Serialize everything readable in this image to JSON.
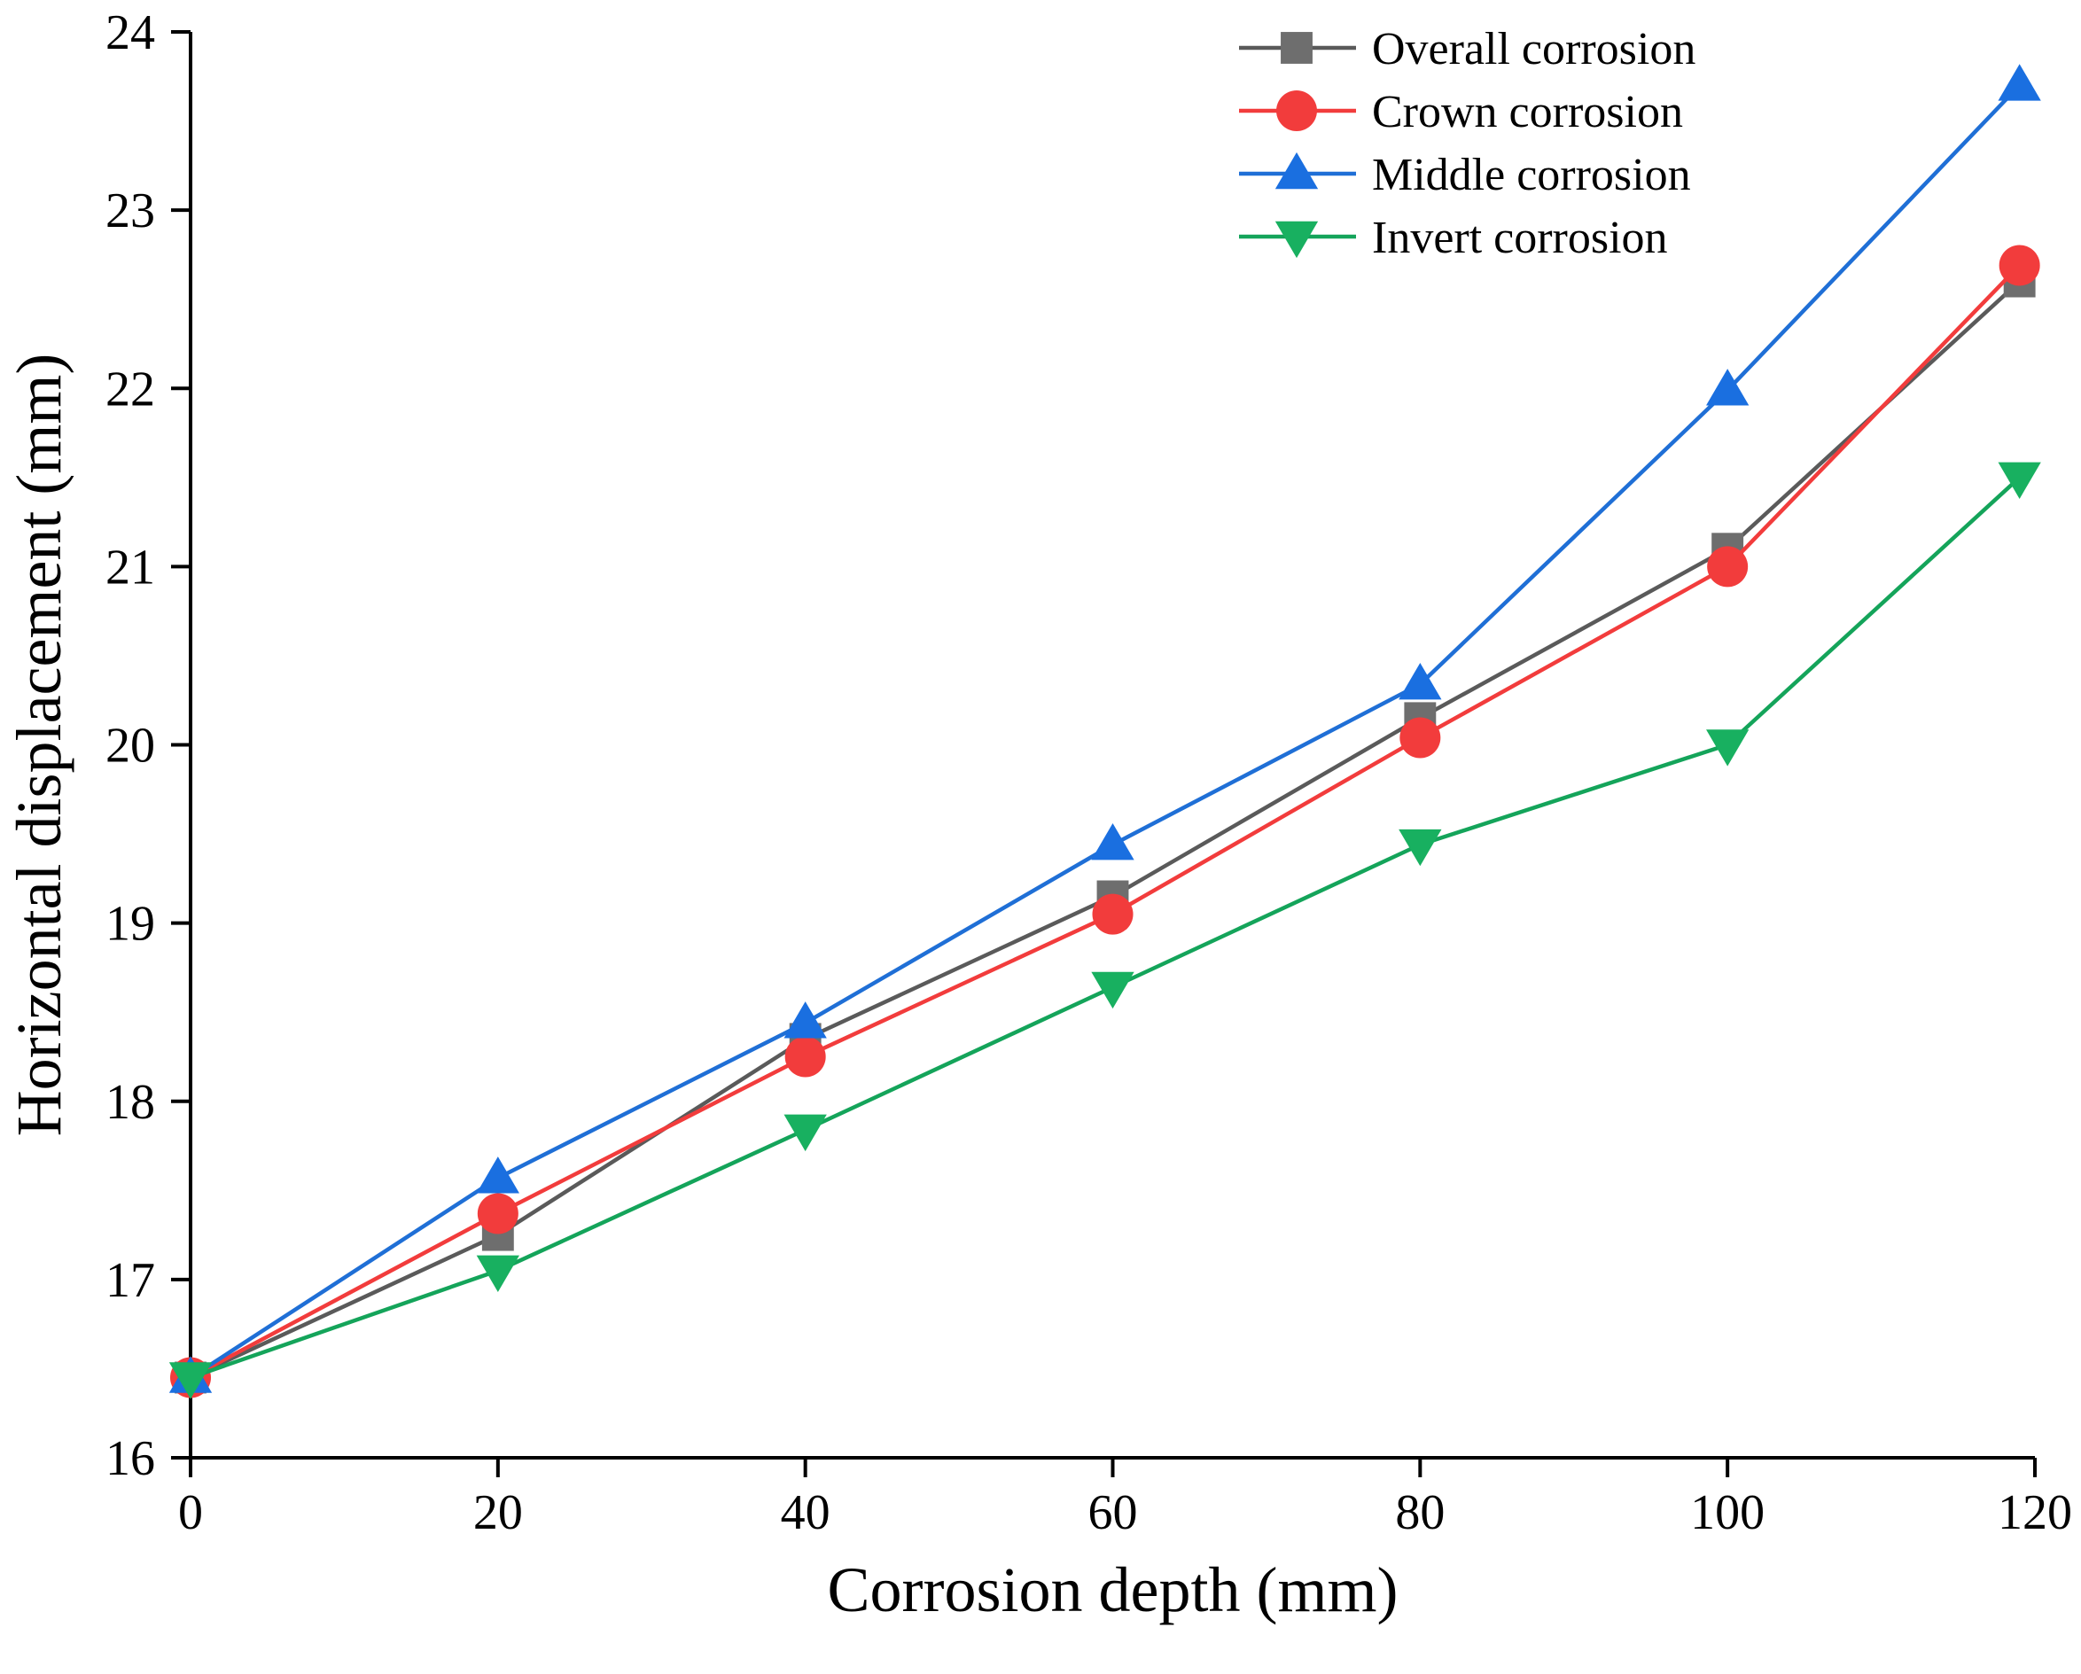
{
  "chart_data": {
    "type": "line",
    "title": "",
    "xlabel": "Corrosion depth (mm)",
    "ylabel": "Horizontal displacement (mm)",
    "xlim": [
      0,
      120
    ],
    "ylim": [
      16,
      24
    ],
    "x": [
      0,
      20,
      40,
      60,
      80,
      100,
      119
    ],
    "xticks": [
      0,
      20,
      40,
      60,
      80,
      100,
      120
    ],
    "yticks": [
      16,
      17,
      18,
      19,
      20,
      21,
      22,
      23,
      24
    ],
    "grid": false,
    "legend_position": "top-right",
    "series": [
      {
        "name": "Overall corrosion",
        "marker": "square",
        "color": "#5a5a5a",
        "marker_color": "#6e6e6e",
        "values": [
          16.45,
          17.25,
          18.35,
          19.15,
          20.15,
          21.1,
          22.6
        ]
      },
      {
        "name": "Crown corrosion",
        "marker": "circle",
        "color": "#f23c3c",
        "marker_color": "#f23c3c",
        "values": [
          16.45,
          17.37,
          18.25,
          19.05,
          20.04,
          21.0,
          22.69
        ]
      },
      {
        "name": "Middle corrosion",
        "marker": "triangle-up",
        "color": "#1f6fd6",
        "marker_color": "#1a6fe0",
        "values": [
          16.45,
          17.57,
          18.44,
          19.44,
          20.34,
          21.99,
          23.7
        ]
      },
      {
        "name": "Invert corrosion",
        "marker": "triangle-down",
        "color": "#14a45a",
        "marker_color": "#18b060",
        "values": [
          16.45,
          17.05,
          17.84,
          18.64,
          19.44,
          20.0,
          21.5
        ]
      }
    ]
  }
}
